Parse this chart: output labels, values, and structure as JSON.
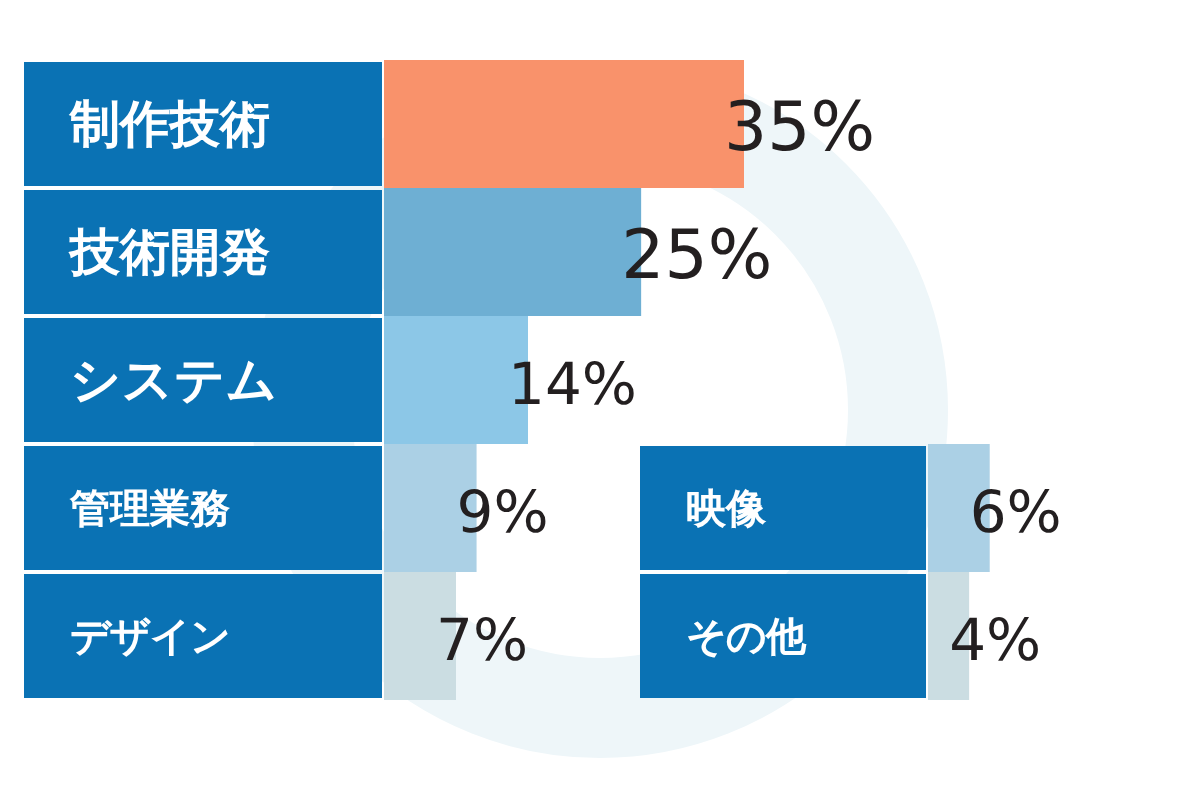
{
  "chart_data": [
    {
      "type": "bar",
      "orientation": "horizontal",
      "categories": [
        "制作技術",
        "技術開発",
        "システム",
        "管理業務",
        "デザイン"
      ],
      "values": [
        35,
        25,
        14,
        9,
        7
      ],
      "colors": [
        "#f9926b",
        "#6eafd3",
        "#8cc7e7",
        "#abd0e5",
        "#cbdde2"
      ],
      "value_labels": [
        "35%",
        "25%",
        "14%",
        "9%",
        "7%"
      ]
    },
    {
      "type": "bar",
      "orientation": "horizontal",
      "categories": [
        "映像",
        "その他"
      ],
      "values": [
        6,
        4
      ],
      "colors": [
        "#abd0e5",
        "#cbdde2"
      ],
      "value_labels": [
        "6%",
        "4%"
      ]
    }
  ]
}
